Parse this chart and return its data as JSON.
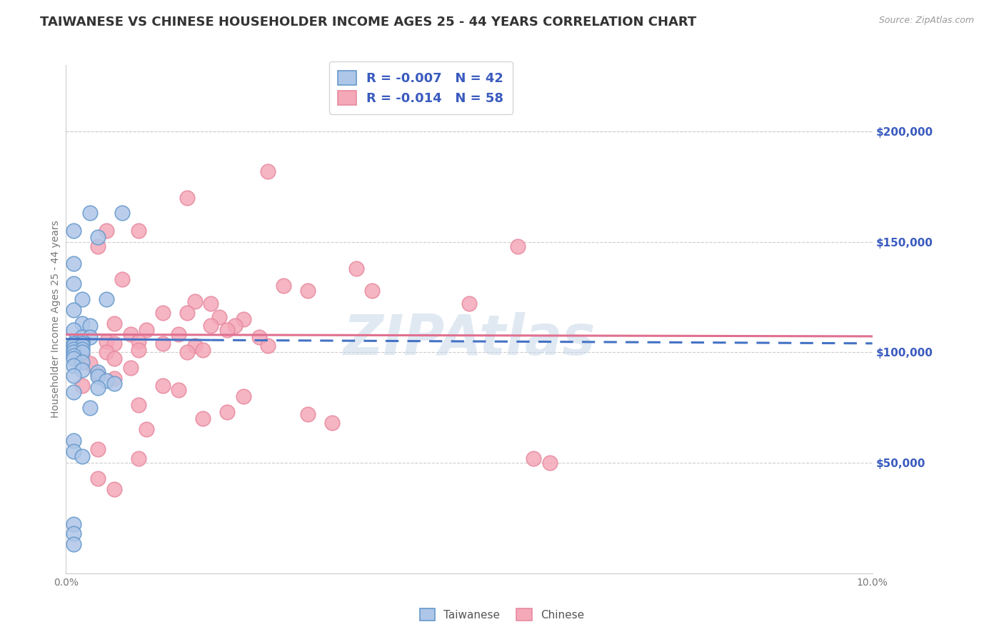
{
  "title": "TAIWANESE VS CHINESE HOUSEHOLDER INCOME AGES 25 - 44 YEARS CORRELATION CHART",
  "source": "Source: ZipAtlas.com",
  "ylabel": "Householder Income Ages 25 - 44 years",
  "xlim": [
    0.0,
    0.1
  ],
  "ylim": [
    0,
    230000
  ],
  "xtick_vals": [
    0.0,
    0.02,
    0.04,
    0.06,
    0.08,
    0.1
  ],
  "xtick_labels": [
    "0.0%",
    "",
    "",
    "",
    "",
    "10.0%"
  ],
  "ytick_labels_right": [
    "$50,000",
    "$100,000",
    "$150,000",
    "$200,000"
  ],
  "ytick_values_right": [
    50000,
    100000,
    150000,
    200000
  ],
  "legend_entries": [
    {
      "label": "R = -0.007   N = 42",
      "color": "#aec6e8"
    },
    {
      "label": "R = -0.014   N = 58",
      "color": "#f4a8b8"
    }
  ],
  "legend_label_color": "#3a5bbf",
  "taiwanese_color": "#aec6e8",
  "chinese_color": "#f4a8b8",
  "taiwanese_edge": "#6699cc",
  "chinese_edge": "#e88aa0",
  "watermark": "ZIPAtlas",
  "watermark_color": "#c8d8e8",
  "taiwanese_data": [
    [
      0.003,
      163000
    ],
    [
      0.007,
      163000
    ],
    [
      0.001,
      155000
    ],
    [
      0.004,
      152000
    ],
    [
      0.001,
      140000
    ],
    [
      0.001,
      131000
    ],
    [
      0.002,
      124000
    ],
    [
      0.005,
      124000
    ],
    [
      0.001,
      119000
    ],
    [
      0.002,
      113000
    ],
    [
      0.003,
      112000
    ],
    [
      0.001,
      110000
    ],
    [
      0.002,
      107000
    ],
    [
      0.003,
      107000
    ],
    [
      0.002,
      105000
    ],
    [
      0.001,
      104000
    ],
    [
      0.002,
      104000
    ],
    [
      0.001,
      103000
    ],
    [
      0.002,
      103000
    ],
    [
      0.001,
      101500
    ],
    [
      0.002,
      101500
    ],
    [
      0.001,
      100000
    ],
    [
      0.002,
      100000
    ],
    [
      0.001,
      98500
    ],
    [
      0.001,
      97000
    ],
    [
      0.002,
      95500
    ],
    [
      0.001,
      94000
    ],
    [
      0.002,
      92000
    ],
    [
      0.004,
      91000
    ],
    [
      0.001,
      89500
    ],
    [
      0.004,
      89000
    ],
    [
      0.005,
      87000
    ],
    [
      0.006,
      86000
    ],
    [
      0.004,
      84000
    ],
    [
      0.001,
      82000
    ],
    [
      0.003,
      75000
    ],
    [
      0.001,
      60000
    ],
    [
      0.001,
      55000
    ],
    [
      0.002,
      53000
    ],
    [
      0.001,
      22000
    ],
    [
      0.001,
      18000
    ],
    [
      0.001,
      13000
    ]
  ],
  "chinese_data": [
    [
      0.025,
      182000
    ],
    [
      0.015,
      170000
    ],
    [
      0.005,
      155000
    ],
    [
      0.009,
      155000
    ],
    [
      0.004,
      148000
    ],
    [
      0.036,
      138000
    ],
    [
      0.007,
      133000
    ],
    [
      0.027,
      130000
    ],
    [
      0.03,
      128000
    ],
    [
      0.016,
      123000
    ],
    [
      0.018,
      122000
    ],
    [
      0.012,
      118000
    ],
    [
      0.015,
      118000
    ],
    [
      0.019,
      116000
    ],
    [
      0.022,
      115000
    ],
    [
      0.006,
      113000
    ],
    [
      0.018,
      112000
    ],
    [
      0.021,
      112000
    ],
    [
      0.01,
      110000
    ],
    [
      0.02,
      110000
    ],
    [
      0.008,
      108000
    ],
    [
      0.014,
      108000
    ],
    [
      0.024,
      107000
    ],
    [
      0.005,
      105000
    ],
    [
      0.009,
      105000
    ],
    [
      0.006,
      104000
    ],
    [
      0.012,
      104000
    ],
    [
      0.016,
      103000
    ],
    [
      0.025,
      103000
    ],
    [
      0.009,
      101000
    ],
    [
      0.017,
      101000
    ],
    [
      0.005,
      100000
    ],
    [
      0.015,
      100000
    ],
    [
      0.002,
      99000
    ],
    [
      0.006,
      97000
    ],
    [
      0.003,
      95000
    ],
    [
      0.008,
      93000
    ],
    [
      0.004,
      90000
    ],
    [
      0.006,
      88000
    ],
    [
      0.002,
      85000
    ],
    [
      0.012,
      85000
    ],
    [
      0.014,
      83000
    ],
    [
      0.022,
      80000
    ],
    [
      0.009,
      76000
    ],
    [
      0.02,
      73000
    ],
    [
      0.03,
      72000
    ],
    [
      0.017,
      70000
    ],
    [
      0.033,
      68000
    ],
    [
      0.01,
      65000
    ],
    [
      0.056,
      148000
    ],
    [
      0.05,
      122000
    ],
    [
      0.038,
      128000
    ],
    [
      0.004,
      56000
    ],
    [
      0.009,
      52000
    ],
    [
      0.058,
      52000
    ],
    [
      0.06,
      50000
    ],
    [
      0.004,
      43000
    ],
    [
      0.006,
      38000
    ]
  ],
  "blue_solid_line": {
    "x0": 0.0,
    "y0": 106000,
    "x1": 0.018,
    "y1": 105500
  },
  "blue_dashed_line": {
    "x0": 0.018,
    "y0": 105500,
    "x1": 0.1,
    "y1": 104000
  },
  "pink_solid_line": {
    "x0": 0.0,
    "y0": 108000,
    "x1": 0.1,
    "y1": 107200
  },
  "grid_color": "#cccccc",
  "title_fontsize": 13,
  "axis_label_fontsize": 10,
  "tick_fontsize": 10,
  "background_color": "#ffffff"
}
